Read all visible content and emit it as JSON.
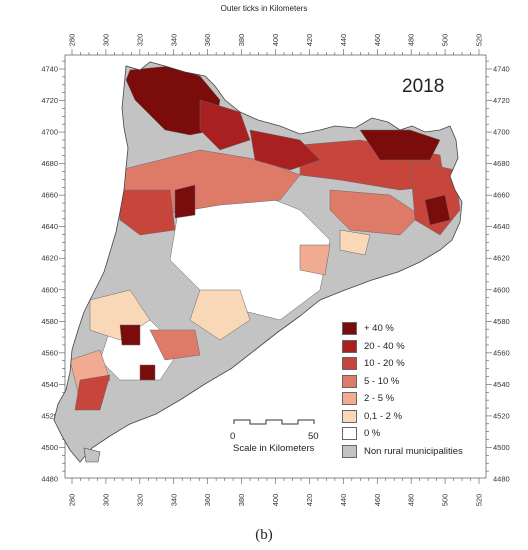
{
  "figure": {
    "top_title": "Outer ticks in Kilometers",
    "year": "2018",
    "caption": "(b)"
  },
  "axes": {
    "x_ticks": [
      280,
      300,
      320,
      340,
      360,
      380,
      400,
      420,
      440,
      460,
      480,
      500,
      520
    ],
    "y_ticks": [
      4740,
      4720,
      4700,
      4680,
      4660,
      4640,
      4620,
      4600,
      4580,
      4560,
      4540,
      4520,
      4500,
      4480
    ]
  },
  "scalebar": {
    "start": "0",
    "end": "50",
    "label": "Scale in Kilometers"
  },
  "legend": [
    {
      "label": "+ 40 %",
      "color": "#7a0c0c"
    },
    {
      "label": "20 - 40 %",
      "color": "#a82020"
    },
    {
      "label": "10 - 20 %",
      "color": "#c8453c"
    },
    {
      "label": "5 - 10 %",
      "color": "#de7a68"
    },
    {
      "label": "2 - 5 %",
      "color": "#f0ab92"
    },
    {
      "label": "0,1 - 2 %",
      "color": "#f9d8b8"
    },
    {
      "label": "0 %",
      "color": "#ffffff"
    },
    {
      "label": "Non rural municipalities",
      "color": "#c3c3c3"
    }
  ]
}
